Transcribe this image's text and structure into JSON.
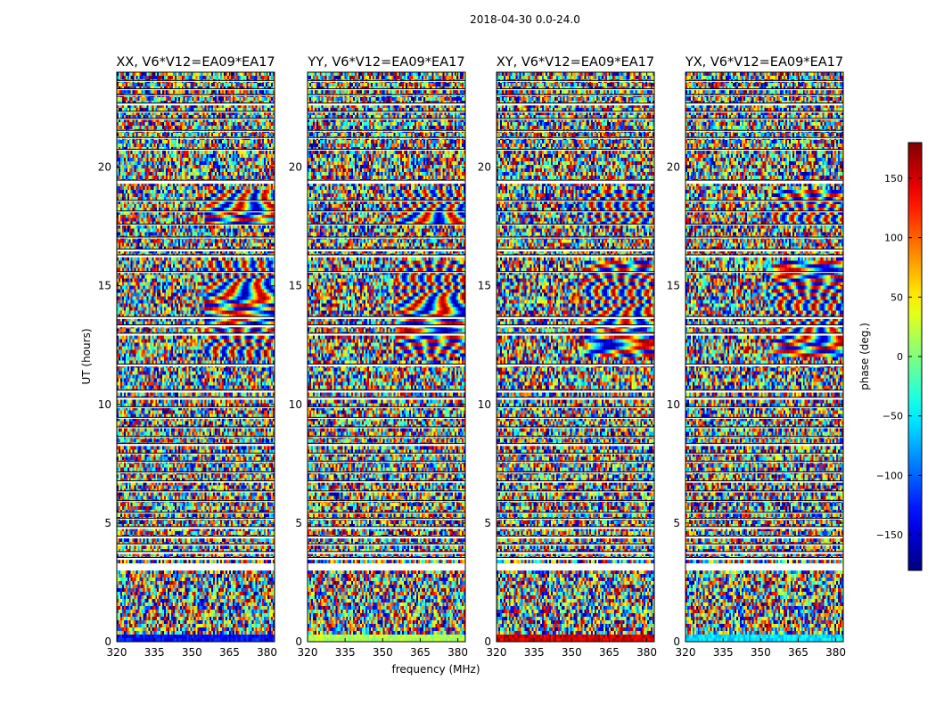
{
  "figure": {
    "suptitle": "2018-04-30 0.0-24.0"
  },
  "chart_data": {
    "type": "heatmap",
    "title": "2018-04-30 0.0-24.0",
    "panels": [
      {
        "title": "XX, V6*V12=EA09*EA17",
        "bottom_band": "blue"
      },
      {
        "title": "YY, V6*V12=EA09*EA17",
        "bottom_band": "lightgreen"
      },
      {
        "title": "XY, V6*V12=EA09*EA17",
        "bottom_band": "red"
      },
      {
        "title": "YX, V6*V12=EA09*EA17",
        "bottom_band": "cyan"
      }
    ],
    "xlabel": "frequency (MHz)",
    "ylabel": "UT (hours)",
    "xlim": [
      320,
      383
    ],
    "xticks": [
      320,
      335,
      350,
      365,
      380
    ],
    "ylim": [
      0,
      24
    ],
    "yticks": [
      0,
      5,
      10,
      15,
      20
    ],
    "colorbar": {
      "label": "phase (deg.)",
      "range": [
        -180,
        180
      ],
      "ticks": [
        -150,
        -100,
        -50,
        0,
        50,
        100,
        150
      ],
      "tick_labels": [
        "−150",
        "−100",
        "−50",
        "0",
        "50",
        "100",
        "150"
      ],
      "colormap": "jet"
    },
    "flagged_gaps_hours": [
      [
        3.05,
        3.2
      ],
      [
        3.45,
        3.55
      ],
      [
        3.7,
        3.8
      ],
      [
        4.05,
        4.12
      ],
      [
        4.35,
        4.45
      ],
      [
        4.75,
        4.85
      ],
      [
        5.15,
        5.2
      ],
      [
        5.4,
        5.45
      ],
      [
        5.9,
        5.95
      ],
      [
        6.3,
        6.35
      ],
      [
        6.7,
        6.78
      ],
      [
        7.1,
        7.15
      ],
      [
        7.55,
        7.6
      ],
      [
        7.9,
        7.95
      ],
      [
        8.25,
        8.35
      ],
      [
        8.6,
        8.65
      ],
      [
        9.0,
        9.05
      ],
      [
        9.4,
        9.45
      ],
      [
        9.85,
        9.9
      ],
      [
        10.2,
        10.3
      ],
      [
        10.5,
        10.6
      ],
      [
        11.6,
        11.7
      ],
      [
        12.9,
        13.0
      ],
      [
        13.25,
        13.35
      ],
      [
        13.6,
        13.7
      ],
      [
        15.55,
        15.6
      ],
      [
        16.2,
        16.3
      ],
      [
        16.45,
        16.55
      ],
      [
        17.0,
        17.05
      ],
      [
        17.55,
        17.6
      ],
      [
        18.1,
        18.15
      ],
      [
        18.55,
        18.6
      ],
      [
        19.3,
        19.45
      ],
      [
        20.7,
        20.75
      ],
      [
        21.2,
        21.25
      ],
      [
        21.5,
        21.55
      ],
      [
        22.0,
        22.05
      ],
      [
        22.3,
        22.35
      ],
      [
        22.6,
        22.7
      ],
      [
        23.0,
        23.05
      ],
      [
        23.25,
        23.3
      ],
      [
        23.6,
        23.65
      ]
    ]
  }
}
